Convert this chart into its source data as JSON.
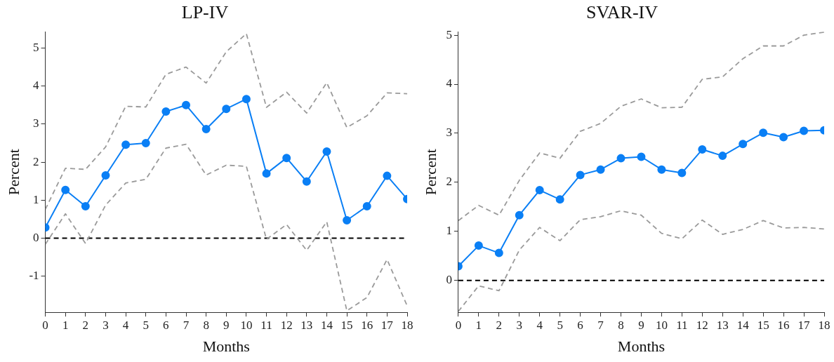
{
  "chart_data": [
    {
      "type": "line",
      "title": "LP-IV",
      "xlabel": "Months",
      "ylabel": "Percent",
      "x": [
        0,
        1,
        2,
        3,
        4,
        5,
        6,
        7,
        8,
        9,
        10,
        11,
        12,
        13,
        14,
        15,
        16,
        17,
        18
      ],
      "xlim": [
        0,
        18
      ],
      "xticks": [
        0,
        1,
        2,
        3,
        4,
        5,
        6,
        7,
        8,
        9,
        10,
        11,
        12,
        13,
        14,
        15,
        16,
        17,
        18
      ],
      "ylim": [
        -1.95,
        5.43
      ],
      "yticks": [
        -1,
        0,
        1,
        2,
        3,
        4,
        5
      ],
      "grid": false,
      "legend": false,
      "series": [
        {
          "color": "#9a9a9a",
          "line_style": "dashed",
          "marker": "none",
          "values": [
            0.76,
            1.84,
            1.81,
            2.4,
            3.47,
            3.45,
            4.31,
            4.5,
            4.08,
            4.9,
            5.38,
            3.44,
            3.84,
            3.29,
            4.09,
            2.91,
            3.22,
            3.82,
            3.8
          ]
        },
        {
          "color": "#9a9a9a",
          "line_style": "dashed",
          "marker": "none",
          "values": [
            -0.16,
            0.64,
            -0.14,
            0.87,
            1.45,
            1.55,
            2.37,
            2.47,
            1.66,
            1.92,
            1.89,
            -0.03,
            0.36,
            -0.32,
            0.43,
            -1.91,
            -1.56,
            -0.56,
            -1.78
          ]
        },
        {
          "color": "#0a7ff5",
          "line_style": "solid",
          "marker": "circle",
          "values": [
            0.28,
            1.27,
            0.84,
            1.65,
            2.46,
            2.5,
            3.33,
            3.5,
            2.87,
            3.4,
            3.66,
            1.7,
            2.11,
            1.49,
            2.28,
            0.47,
            0.84,
            1.64,
            1.03
          ]
        }
      ],
      "ref_lines": [
        {
          "axis": "y",
          "value": 0,
          "color": "#000000",
          "line_style": "dashed"
        }
      ]
    },
    {
      "type": "line",
      "title": "SVAR-IV",
      "xlabel": "Months",
      "ylabel": "Percent",
      "x": [
        0,
        1,
        2,
        3,
        4,
        5,
        6,
        7,
        8,
        9,
        10,
        11,
        12,
        13,
        14,
        15,
        16,
        17,
        18
      ],
      "xlim": [
        0,
        18
      ],
      "xticks": [
        0,
        1,
        2,
        3,
        4,
        5,
        6,
        7,
        8,
        9,
        10,
        11,
        12,
        13,
        14,
        15,
        16,
        17,
        18
      ],
      "ylim": [
        -0.65,
        5.07
      ],
      "yticks": [
        0,
        1,
        2,
        3,
        4,
        5
      ],
      "grid": false,
      "legend": false,
      "series": [
        {
          "color": "#9a9a9a",
          "line_style": "dashed",
          "marker": "none",
          "values": [
            1.22,
            1.53,
            1.33,
            2.04,
            2.6,
            2.49,
            3.04,
            3.2,
            3.55,
            3.7,
            3.52,
            3.53,
            4.1,
            4.15,
            4.52,
            4.78,
            4.78,
            5.0,
            5.06
          ]
        },
        {
          "color": "#9a9a9a",
          "line_style": "dashed",
          "marker": "none",
          "values": [
            -0.63,
            -0.11,
            -0.21,
            0.62,
            1.08,
            0.81,
            1.24,
            1.3,
            1.42,
            1.33,
            0.96,
            0.85,
            1.23,
            0.94,
            1.04,
            1.22,
            1.07,
            1.08,
            1.05
          ]
        },
        {
          "color": "#0a7ff5",
          "line_style": "solid",
          "marker": "circle",
          "values": [
            0.29,
            0.71,
            0.56,
            1.33,
            1.84,
            1.65,
            2.15,
            2.26,
            2.49,
            2.52,
            2.26,
            2.19,
            2.67,
            2.54,
            2.78,
            3.01,
            2.92,
            3.05,
            3.06
          ]
        }
      ],
      "ref_lines": [
        {
          "axis": "y",
          "value": 0,
          "color": "#000000",
          "line_style": "dashed"
        }
      ]
    }
  ]
}
